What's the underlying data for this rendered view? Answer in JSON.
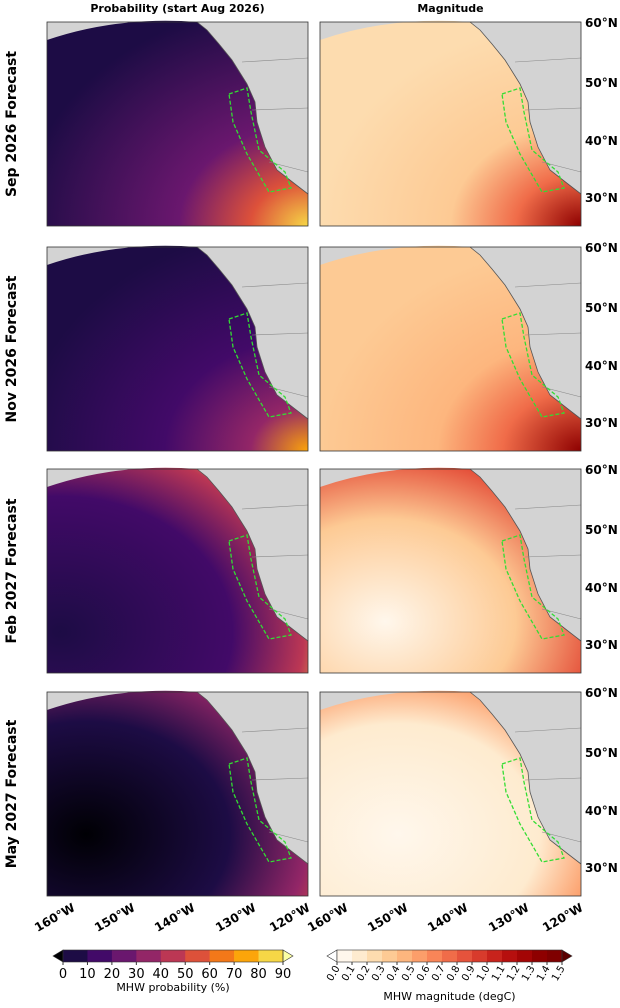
{
  "column_titles": [
    "Probability (start Aug 2026)",
    "Magnitude"
  ],
  "row_titles": [
    "Sep 2026 Forecast",
    "Nov 2026 Forecast",
    "Feb 2027 Forecast",
    "May 2027 Forecast"
  ],
  "lat_labels": [
    "60°N",
    "50°N",
    "40°N",
    "30°N"
  ],
  "lon_labels": [
    "160°W",
    "150°W",
    "140°W",
    "130°W",
    "120°W"
  ],
  "colorbars": [
    {
      "label": "MHW probability (%)",
      "ticks": [
        0,
        10,
        20,
        30,
        40,
        50,
        60,
        70,
        80,
        90
      ],
      "colors": [
        "#000004",
        "#1d0c45",
        "#420a68",
        "#6a176e",
        "#932667",
        "#bc3754",
        "#dd513a",
        "#f37819",
        "#fca50a",
        "#f6d746",
        "#fcffa4"
      ]
    },
    {
      "label": "MHW magnitude (degC)",
      "ticks": [
        {
          "value": 0,
          "label": "0.0"
        },
        0.1,
        0.2,
        0.3,
        0.4,
        0.5,
        0.6,
        0.7,
        0.8,
        0.9,
        {
          "value": 1,
          "label": "1.0"
        },
        1.1,
        1.2,
        1.3,
        1.4,
        1.5
      ],
      "colors": [
        "#ffffff",
        "#fff7ec",
        "#feebcf",
        "#fddcaf",
        "#fdca94",
        "#fdb67e",
        "#fc9e6a",
        "#f98558",
        "#f06c49",
        "#e5533c",
        "#d83b2c",
        "#c8231c",
        "#b60f0e",
        "#a30505",
        "#8e0000",
        "#7f0000",
        "#5a0000"
      ]
    }
  ]
}
